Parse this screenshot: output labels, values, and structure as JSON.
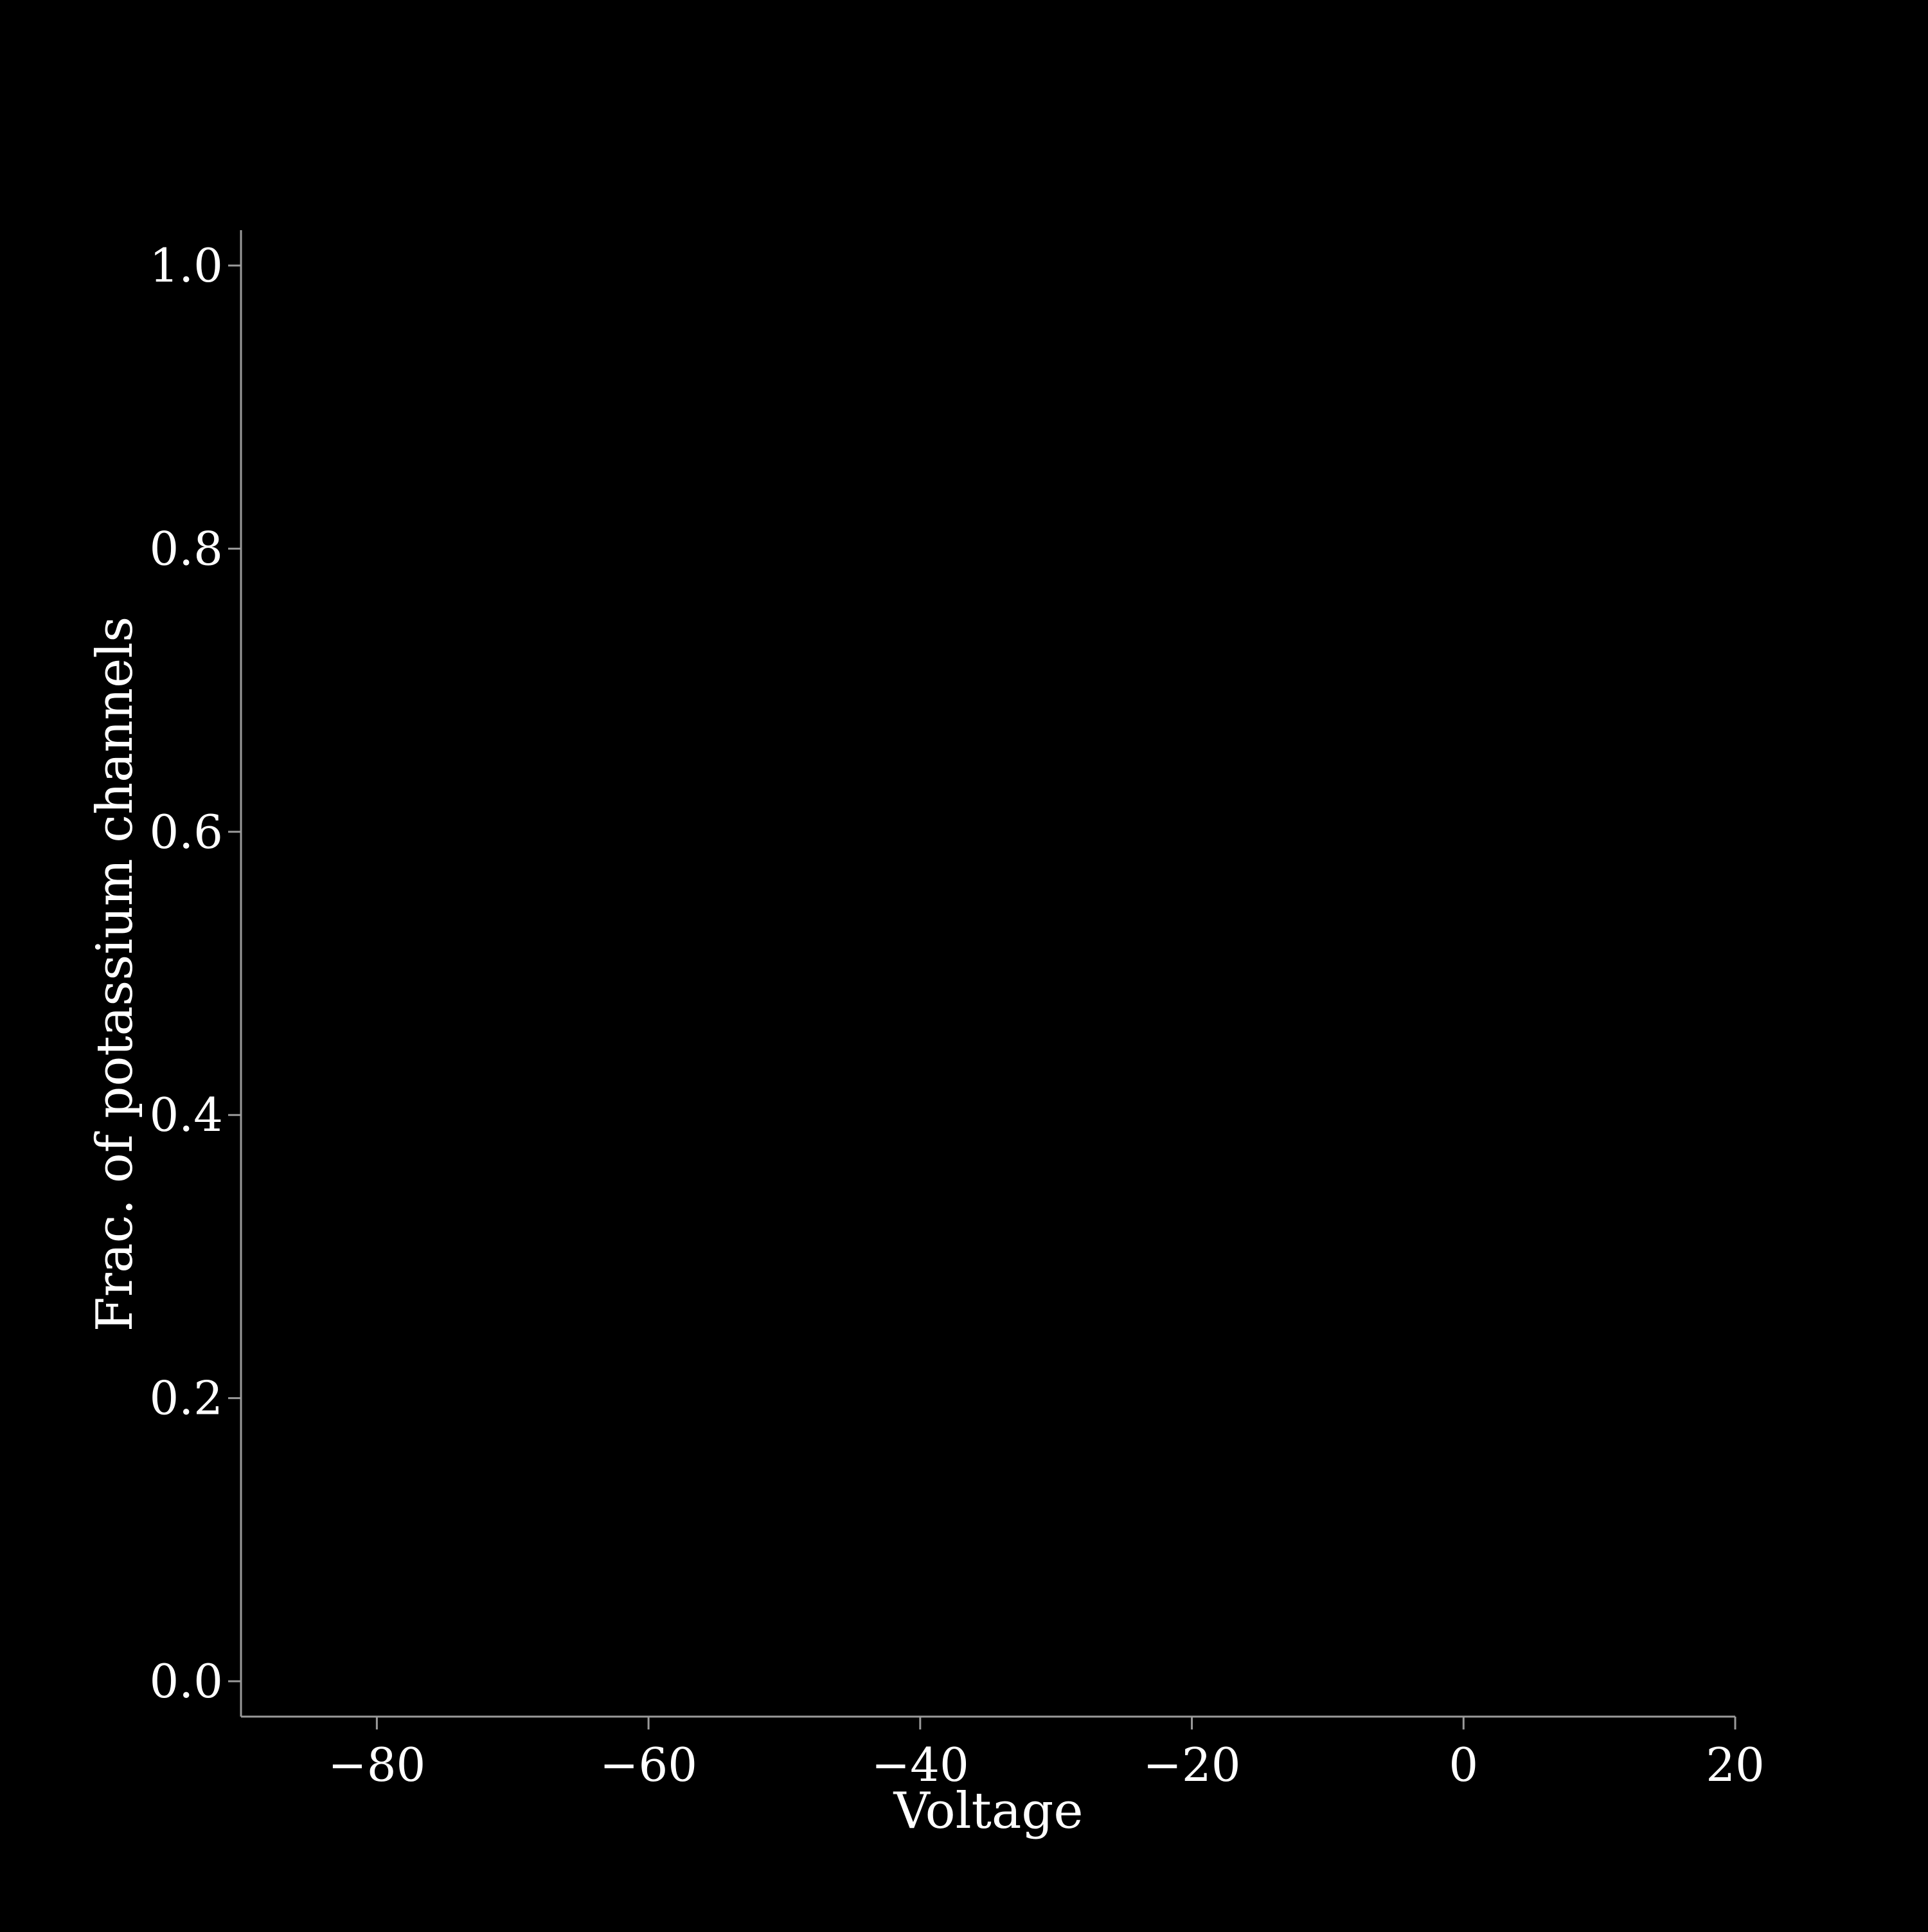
{
  "chart_data": {
    "type": "line",
    "title": "",
    "xlabel": "Voltage",
    "ylabel": "Frac. of potassium channels",
    "xlim": [
      -90,
      20
    ],
    "ylim": [
      -0.025,
      1.025
    ],
    "xticks": [
      -80,
      -60,
      -40,
      -20,
      0,
      20
    ],
    "yticks": [
      0.0,
      0.2,
      0.4,
      0.6,
      0.8,
      1.0
    ],
    "xtick_labels": [
      "−80",
      "−60",
      "−40",
      "−20",
      "0",
      "20"
    ],
    "ytick_labels": [
      "0.0",
      "0.2",
      "0.4",
      "0.6",
      "0.8",
      "1.0"
    ],
    "series": [],
    "grid": false,
    "legend": "none",
    "colors": {
      "background": "#000000",
      "axis": "#9a9a9a",
      "text": "#ffffff"
    }
  }
}
